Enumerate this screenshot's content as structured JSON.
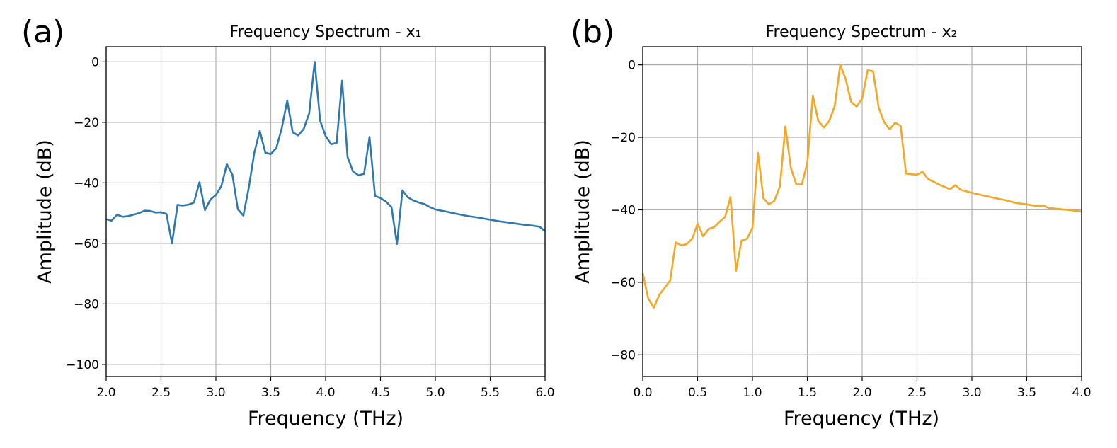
{
  "panels": [
    {
      "label": "(a)"
    },
    {
      "label": "(b)"
    }
  ],
  "chart_data": [
    {
      "type": "line",
      "title": "Frequency Spectrum - x₁",
      "xlabel": "Frequency (THz)",
      "ylabel": "Amplitude (dB)",
      "xlim": [
        2.0,
        6.0
      ],
      "ylim": [
        -104,
        5
      ],
      "xticks": [
        2.0,
        2.5,
        3.0,
        3.5,
        4.0,
        4.5,
        5.0,
        5.5,
        6.0
      ],
      "xtick_labels": [
        "2.0",
        "2.5",
        "3.0",
        "3.5",
        "4.0",
        "4.5",
        "5.0",
        "5.5",
        "6.0"
      ],
      "yticks": [
        0,
        -20,
        -40,
        -60,
        -80,
        -100
      ],
      "ytick_labels": [
        "0",
        "−20",
        "−40",
        "−60",
        "−80",
        "−100"
      ],
      "grid": true,
      "color": "#2e78b0",
      "series": [
        {
          "name": "x₁",
          "x": [
            2.0,
            2.05,
            2.1,
            2.15,
            2.2,
            2.25,
            2.3,
            2.35,
            2.4,
            2.45,
            2.5,
            2.55,
            2.6,
            2.65,
            2.7,
            2.75,
            2.8,
            2.85,
            2.9,
            2.95,
            3.0,
            3.05,
            3.1,
            3.15,
            3.2,
            3.25,
            3.3,
            3.35,
            3.4,
            3.45,
            3.5,
            3.55,
            3.6,
            3.65,
            3.7,
            3.75,
            3.8,
            3.85,
            3.9,
            3.95,
            4.0,
            4.05,
            4.1,
            4.15,
            4.2,
            4.25,
            4.3,
            4.35,
            4.4,
            4.45,
            4.5,
            4.55,
            4.6,
            4.65,
            4.7,
            4.75,
            4.8,
            4.85,
            4.9,
            4.95,
            5.0,
            5.1,
            5.2,
            5.3,
            5.4,
            5.5,
            5.6,
            5.7,
            5.8,
            5.9,
            5.95,
            6.0
          ],
          "y": [
            -52,
            -52.5,
            -50.5,
            -51.2,
            -51,
            -50.5,
            -50,
            -49.2,
            -49.3,
            -49.8,
            -49.7,
            -50.3,
            -60,
            -47.3,
            -47.5,
            -47.2,
            -46.5,
            -39.8,
            -49,
            -45.5,
            -44,
            -41,
            -33.8,
            -37.3,
            -48.7,
            -50.8,
            -41.5,
            -30,
            -22.8,
            -30,
            -30.5,
            -28.5,
            -22,
            -12.8,
            -23.3,
            -24.3,
            -22.2,
            -17,
            0,
            -19.5,
            -24.5,
            -27.2,
            -26.8,
            -6.2,
            -31.5,
            -36.3,
            -37.5,
            -37,
            -24.8,
            -44.3,
            -45,
            -46.2,
            -48,
            -60.2,
            -42.5,
            -44.8,
            -45.8,
            -46.5,
            -47,
            -48,
            -48.8,
            -49.5,
            -50.3,
            -51,
            -51.5,
            -52.2,
            -52.8,
            -53.3,
            -53.8,
            -54.2,
            -54.5,
            -56
          ]
        }
      ]
    },
    {
      "type": "line",
      "title": "Frequency Spectrum - x₂",
      "xlabel": "Frequency (THz)",
      "ylabel": "Amplitude (dB)",
      "xlim": [
        0.0,
        4.0
      ],
      "ylim": [
        -86,
        5
      ],
      "xticks": [
        0.0,
        0.5,
        1.0,
        1.5,
        2.0,
        2.5,
        3.0,
        3.5,
        4.0
      ],
      "xtick_labels": [
        "0.0",
        "0.5",
        "1.0",
        "1.5",
        "2.0",
        "2.5",
        "3.0",
        "3.5",
        "4.0"
      ],
      "yticks": [
        0,
        -20,
        -40,
        -60,
        -80
      ],
      "ytick_labels": [
        "0",
        "−20",
        "−40",
        "−60",
        "−80"
      ],
      "grid": true,
      "color": "#f5a623",
      "series": [
        {
          "name": "x₂",
          "x": [
            0.0,
            0.05,
            0.1,
            0.15,
            0.2,
            0.25,
            0.3,
            0.35,
            0.4,
            0.45,
            0.5,
            0.55,
            0.6,
            0.65,
            0.7,
            0.75,
            0.8,
            0.85,
            0.9,
            0.95,
            1.0,
            1.05,
            1.1,
            1.15,
            1.2,
            1.25,
            1.3,
            1.35,
            1.4,
            1.45,
            1.5,
            1.55,
            1.6,
            1.65,
            1.7,
            1.75,
            1.8,
            1.85,
            1.9,
            1.95,
            2.0,
            2.05,
            2.1,
            2.15,
            2.2,
            2.25,
            2.3,
            2.35,
            2.4,
            2.45,
            2.5,
            2.55,
            2.6,
            2.7,
            2.8,
            2.85,
            2.9,
            3.0,
            3.1,
            3.2,
            3.3,
            3.4,
            3.5,
            3.6,
            3.65,
            3.7,
            3.8,
            3.9,
            4.0
          ],
          "y": [
            -57.5,
            -64.5,
            -67,
            -63.5,
            -61.5,
            -59.5,
            -49,
            -49.8,
            -49.5,
            -48,
            -43.8,
            -47.3,
            -45.3,
            -44.8,
            -43.3,
            -42,
            -36.5,
            -56.8,
            -48.5,
            -48,
            -45,
            -24.3,
            -36.8,
            -38.5,
            -37.5,
            -33.5,
            -17,
            -28.5,
            -33,
            -33,
            -27,
            -8.5,
            -15.5,
            -17.3,
            -15.5,
            -11.3,
            0,
            -4,
            -10.3,
            -11.5,
            -9.3,
            -1.5,
            -1.8,
            -11.8,
            -15.8,
            -17.8,
            -16,
            -16.8,
            -30,
            -30.2,
            -30.3,
            -29.5,
            -31.5,
            -33,
            -34.3,
            -33.2,
            -34.5,
            -35.3,
            -36,
            -36.7,
            -37.3,
            -38.1,
            -38.5,
            -39,
            -38.8,
            -39.5,
            -39.8,
            -40.1,
            -40.5
          ]
        }
      ]
    }
  ]
}
